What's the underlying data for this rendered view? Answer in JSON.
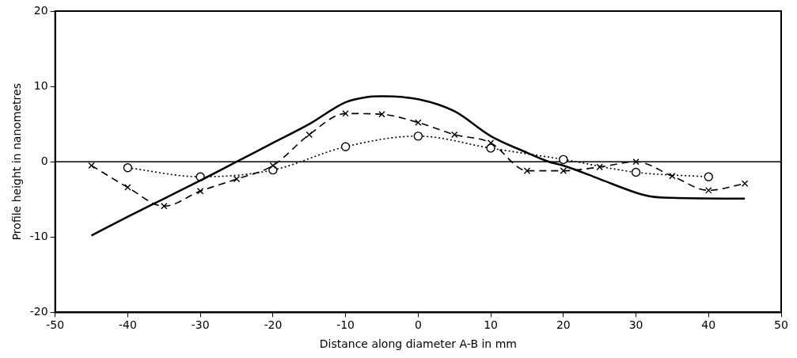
{
  "chart_data": {
    "type": "line",
    "xlabel": "Distance along diameter A-B in mm",
    "ylabel": "Profile height in nanometres",
    "xlim": [
      -50,
      50
    ],
    "xticks": [
      -50,
      -40,
      -30,
      -20,
      -10,
      0,
      10,
      20,
      30,
      40,
      50
    ],
    "ylim": [
      -20,
      20
    ],
    "yticks": [
      -20,
      -10,
      0,
      10,
      20
    ],
    "grid": false,
    "legend": false,
    "ref_lines": [
      {
        "axis": "y",
        "value": 0,
        "color": "#000000"
      }
    ],
    "series": [
      {
        "color": "#000000",
        "line_style": "solid",
        "marker": "none",
        "x": [
          -45,
          -40,
          -35,
          -30,
          -25,
          -20,
          -15,
          -10,
          -7,
          -5,
          0,
          5,
          10,
          15,
          18,
          20,
          25,
          30,
          32,
          35,
          45
        ],
        "values": [
          -9.8,
          -7.3,
          -4.9,
          -2.5,
          0,
          2.5,
          5,
          7.9,
          8.6,
          8.7,
          8.3,
          6.7,
          3.4,
          1.2,
          0,
          -0.5,
          -2.3,
          -4.1,
          -4.6,
          -4.8,
          -4.9
        ]
      },
      {
        "color": "#000000",
        "line_style": "dashed",
        "marker": "cross",
        "x": [
          -45,
          -40,
          -35,
          -30,
          -25,
          -20,
          -15,
          -10,
          -5,
          0,
          5,
          10,
          15,
          20,
          25,
          30,
          35,
          40,
          45
        ],
        "values": [
          -0.5,
          -3.4,
          -5.9,
          -3.9,
          -2.3,
          -0.5,
          3.6,
          6.4,
          6.3,
          5.2,
          3.6,
          2.5,
          -1.2,
          -1.2,
          -0.7,
          0,
          -1.9,
          -3.8,
          -2.9
        ]
      },
      {
        "color": "#000000",
        "line_style": "dotted",
        "marker": "circle",
        "x": [
          -40,
          -30,
          -20,
          -10,
          0,
          10,
          20,
          30,
          40
        ],
        "values": [
          -0.8,
          -2,
          -1.1,
          2,
          3.4,
          1.8,
          0.3,
          -1.4,
          -2
        ]
      }
    ]
  }
}
